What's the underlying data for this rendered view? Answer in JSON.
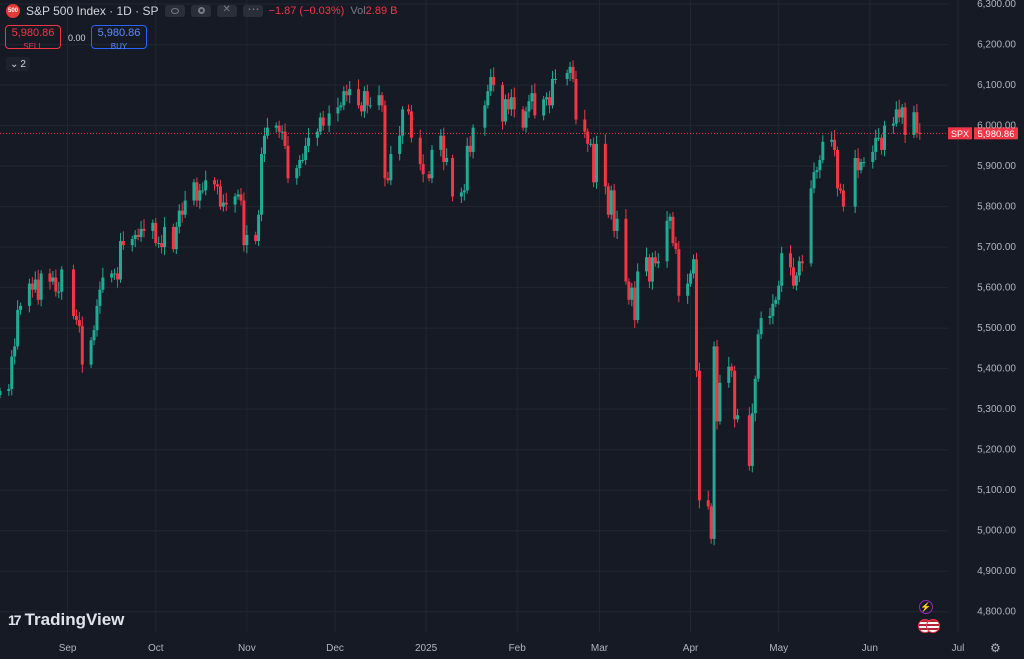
{
  "header": {
    "logo_text": "500",
    "title": "S&P 500 Index · 1D · SP",
    "change": "−1.87 (−0.03%)",
    "vol_label": "Vol",
    "vol_value": "2.89 B"
  },
  "trade": {
    "sell_price": "5,980.86",
    "sell_label": "SELL",
    "spread": "0.00",
    "buy_price": "5,980.86",
    "buy_label": "BUY"
  },
  "collapse_count": "2",
  "branding": "TradingView",
  "icons": [
    "eye-icon",
    "gear-icon",
    "close-icon",
    "more-icon",
    "chevron-down-icon",
    "lightning-icon",
    "us-flag-icon",
    "settings-icon"
  ],
  "colors": {
    "up": "#22ab94",
    "down": "#f23645",
    "background": "#161a25",
    "grid": "#232632",
    "axis_text": "#b2b5be"
  },
  "chart_data": {
    "type": "candlestick",
    "symbol": "SPX",
    "last_price": "5,980.86",
    "ylim": [
      4750,
      6310
    ],
    "y_ticks": [
      4800,
      4900,
      5000,
      5100,
      5200,
      5300,
      5400,
      5500,
      5600,
      5700,
      5800,
      5900,
      6000,
      6100,
      6200,
      6300
    ],
    "y_tick_labels": [
      "4,800.00",
      "4,900.00",
      "5,000.00",
      "5,100.00",
      "5,200.00",
      "5,300.00",
      "5,400.00",
      "5,500.00",
      "5,600.00",
      "5,700.00",
      "5,800.00",
      "5,900.00",
      "6,000.00",
      "6,100.00",
      "6,200.00",
      "6,300.00"
    ],
    "x_tick_labels": [
      "Sep",
      "Oct",
      "Nov",
      "Dec",
      "2025",
      "Feb",
      "Mar",
      "Apr",
      "May",
      "Jun",
      "Jul"
    ],
    "x_tick_dates": [
      "2024-09-01",
      "2024-10-01",
      "2024-11-01",
      "2024-12-01",
      "2025-01-01",
      "2025-02-01",
      "2025-03-01",
      "2025-04-01",
      "2025-05-01",
      "2025-06-01",
      "2025-07-01"
    ],
    "x_range": [
      "2024-08-09",
      "2025-07-01"
    ],
    "grid": true,
    "price_line": 5980.86,
    "series": [
      {
        "date": "2024-08-09",
        "close": 5345
      },
      {
        "date": "2024-08-12",
        "close": 5350
      },
      {
        "date": "2024-08-13",
        "close": 5430
      },
      {
        "date": "2024-08-14",
        "close": 5455
      },
      {
        "date": "2024-08-15",
        "close": 5545
      },
      {
        "date": "2024-08-16",
        "close": 5555
      },
      {
        "date": "2024-08-19",
        "close": 5610
      },
      {
        "date": "2024-08-20",
        "close": 5595
      },
      {
        "date": "2024-08-21",
        "close": 5620
      },
      {
        "date": "2024-08-22",
        "close": 5570
      },
      {
        "date": "2024-08-23",
        "close": 5635
      },
      {
        "date": "2024-08-26",
        "close": 5615
      },
      {
        "date": "2024-08-27",
        "close": 5625
      },
      {
        "date": "2024-08-28",
        "close": 5590
      },
      {
        "date": "2024-08-29",
        "close": 5590
      },
      {
        "date": "2024-08-30",
        "close": 5645
      },
      {
        "date": "2024-09-03",
        "close": 5530
      },
      {
        "date": "2024-09-04",
        "close": 5520
      },
      {
        "date": "2024-09-05",
        "close": 5505
      },
      {
        "date": "2024-09-06",
        "close": 5410
      },
      {
        "date": "2024-09-09",
        "close": 5470
      },
      {
        "date": "2024-09-10",
        "close": 5495
      },
      {
        "date": "2024-09-11",
        "close": 5555
      },
      {
        "date": "2024-09-12",
        "close": 5595
      },
      {
        "date": "2024-09-13",
        "close": 5625
      },
      {
        "date": "2024-09-16",
        "close": 5635
      },
      {
        "date": "2024-09-17",
        "close": 5635
      },
      {
        "date": "2024-09-18",
        "close": 5620
      },
      {
        "date": "2024-09-19",
        "close": 5715
      },
      {
        "date": "2024-09-20",
        "close": 5705
      },
      {
        "date": "2024-09-23",
        "close": 5720
      },
      {
        "date": "2024-09-24",
        "close": 5730
      },
      {
        "date": "2024-09-25",
        "close": 5725
      },
      {
        "date": "2024-09-26",
        "close": 5745
      },
      {
        "date": "2024-09-27",
        "close": 5740
      },
      {
        "date": "2024-09-30",
        "close": 5760
      },
      {
        "date": "2024-10-01",
        "close": 5710
      },
      {
        "date": "2024-10-02",
        "close": 5710
      },
      {
        "date": "2024-10-03",
        "close": 5700
      },
      {
        "date": "2024-10-04",
        "close": 5750
      },
      {
        "date": "2024-10-07",
        "close": 5695
      },
      {
        "date": "2024-10-08",
        "close": 5750
      },
      {
        "date": "2024-10-09",
        "close": 5790
      },
      {
        "date": "2024-10-10",
        "close": 5780
      },
      {
        "date": "2024-10-11",
        "close": 5815
      },
      {
        "date": "2024-10-14",
        "close": 5860
      },
      {
        "date": "2024-10-15",
        "close": 5815
      },
      {
        "date": "2024-10-16",
        "close": 5840
      },
      {
        "date": "2024-10-17",
        "close": 5840
      },
      {
        "date": "2024-10-18",
        "close": 5865
      },
      {
        "date": "2024-10-21",
        "close": 5855
      },
      {
        "date": "2024-10-22",
        "close": 5850
      },
      {
        "date": "2024-10-23",
        "close": 5800
      },
      {
        "date": "2024-10-24",
        "close": 5810
      },
      {
        "date": "2024-10-25",
        "close": 5805
      },
      {
        "date": "2024-10-28",
        "close": 5825
      },
      {
        "date": "2024-10-29",
        "close": 5830
      },
      {
        "date": "2024-10-30",
        "close": 5815
      },
      {
        "date": "2024-10-31",
        "close": 5705
      },
      {
        "date": "2024-11-01",
        "close": 5730
      },
      {
        "date": "2024-11-04",
        "close": 5715
      },
      {
        "date": "2024-11-05",
        "close": 5780
      },
      {
        "date": "2024-11-06",
        "close": 5930
      },
      {
        "date": "2024-11-07",
        "close": 5975
      },
      {
        "date": "2024-11-08",
        "close": 5995
      },
      {
        "date": "2024-11-11",
        "close": 6000
      },
      {
        "date": "2024-11-12",
        "close": 5985
      },
      {
        "date": "2024-11-13",
        "close": 5985
      },
      {
        "date": "2024-11-14",
        "close": 5950
      },
      {
        "date": "2024-11-15",
        "close": 5870
      },
      {
        "date": "2024-11-18",
        "close": 5895
      },
      {
        "date": "2024-11-19",
        "close": 5915
      },
      {
        "date": "2024-11-20",
        "close": 5915
      },
      {
        "date": "2024-11-21",
        "close": 5950
      },
      {
        "date": "2024-11-22",
        "close": 5970
      },
      {
        "date": "2024-11-25",
        "close": 5985
      },
      {
        "date": "2024-11-26",
        "close": 6020
      },
      {
        "date": "2024-11-27",
        "close": 6000
      },
      {
        "date": "2024-11-29",
        "close": 6030
      },
      {
        "date": "2024-12-02",
        "close": 6045
      },
      {
        "date": "2024-12-03",
        "close": 6050
      },
      {
        "date": "2024-12-04",
        "close": 6085
      },
      {
        "date": "2024-12-05",
        "close": 6075
      },
      {
        "date": "2024-12-06",
        "close": 6090
      },
      {
        "date": "2024-12-09",
        "close": 6050
      },
      {
        "date": "2024-12-10",
        "close": 6035
      },
      {
        "date": "2024-12-11",
        "close": 6085
      },
      {
        "date": "2024-12-12",
        "close": 6050
      },
      {
        "date": "2024-12-13",
        "close": 6050
      },
      {
        "date": "2024-12-16",
        "close": 6075
      },
      {
        "date": "2024-12-17",
        "close": 6050
      },
      {
        "date": "2024-12-18",
        "close": 5870
      },
      {
        "date": "2024-12-19",
        "close": 5865
      },
      {
        "date": "2024-12-20",
        "close": 5930
      },
      {
        "date": "2024-12-23",
        "close": 5975
      },
      {
        "date": "2024-12-24",
        "close": 6040
      },
      {
        "date": "2024-12-26",
        "close": 6035
      },
      {
        "date": "2024-12-27",
        "close": 5970
      },
      {
        "date": "2024-12-30",
        "close": 5905
      },
      {
        "date": "2024-12-31",
        "close": 5880
      },
      {
        "date": "2025-01-02",
        "close": 5870
      },
      {
        "date": "2025-01-03",
        "close": 5940
      },
      {
        "date": "2025-01-06",
        "close": 5975
      },
      {
        "date": "2025-01-07",
        "close": 5910
      },
      {
        "date": "2025-01-08",
        "close": 5920
      },
      {
        "date": "2025-01-10",
        "close": 5825
      },
      {
        "date": "2025-01-13",
        "close": 5835
      },
      {
        "date": "2025-01-14",
        "close": 5840
      },
      {
        "date": "2025-01-15",
        "close": 5950
      },
      {
        "date": "2025-01-16",
        "close": 5935
      },
      {
        "date": "2025-01-17",
        "close": 5995
      },
      {
        "date": "2025-01-21",
        "close": 6050
      },
      {
        "date": "2025-01-22",
        "close": 6085
      },
      {
        "date": "2025-01-23",
        "close": 6120
      },
      {
        "date": "2025-01-24",
        "close": 6100
      },
      {
        "date": "2025-01-27",
        "close": 6010
      },
      {
        "date": "2025-01-28",
        "close": 6065
      },
      {
        "date": "2025-01-29",
        "close": 6040
      },
      {
        "date": "2025-01-30",
        "close": 6070
      },
      {
        "date": "2025-01-31",
        "close": 6040
      },
      {
        "date": "2025-02-03",
        "close": 5995
      },
      {
        "date": "2025-02-04",
        "close": 6035
      },
      {
        "date": "2025-02-05",
        "close": 6060
      },
      {
        "date": "2025-02-06",
        "close": 6080
      },
      {
        "date": "2025-02-07",
        "close": 6025
      },
      {
        "date": "2025-02-10",
        "close": 6065
      },
      {
        "date": "2025-02-11",
        "close": 6070
      },
      {
        "date": "2025-02-12",
        "close": 6050
      },
      {
        "date": "2025-02-13",
        "close": 6115
      },
      {
        "date": "2025-02-14",
        "close": 6115
      },
      {
        "date": "2025-02-18",
        "close": 6130
      },
      {
        "date": "2025-02-19",
        "close": 6145
      },
      {
        "date": "2025-02-20",
        "close": 6115
      },
      {
        "date": "2025-02-21",
        "close": 6015
      },
      {
        "date": "2025-02-24",
        "close": 5985
      },
      {
        "date": "2025-02-25",
        "close": 5955
      },
      {
        "date": "2025-02-26",
        "close": 5955
      },
      {
        "date": "2025-02-27",
        "close": 5860
      },
      {
        "date": "2025-02-28",
        "close": 5955
      },
      {
        "date": "2025-03-03",
        "close": 5850
      },
      {
        "date": "2025-03-04",
        "close": 5780
      },
      {
        "date": "2025-03-05",
        "close": 5840
      },
      {
        "date": "2025-03-06",
        "close": 5740
      },
      {
        "date": "2025-03-07",
        "close": 5770
      },
      {
        "date": "2025-03-10",
        "close": 5615
      },
      {
        "date": "2025-03-11",
        "close": 5570
      },
      {
        "date": "2025-03-12",
        "close": 5600
      },
      {
        "date": "2025-03-13",
        "close": 5520
      },
      {
        "date": "2025-03-14",
        "close": 5640
      },
      {
        "date": "2025-03-17",
        "close": 5675
      },
      {
        "date": "2025-03-18",
        "close": 5615
      },
      {
        "date": "2025-03-19",
        "close": 5675
      },
      {
        "date": "2025-03-20",
        "close": 5660
      },
      {
        "date": "2025-03-21",
        "close": 5665
      },
      {
        "date": "2025-03-24",
        "close": 5765
      },
      {
        "date": "2025-03-25",
        "close": 5775
      },
      {
        "date": "2025-03-26",
        "close": 5710
      },
      {
        "date": "2025-03-27",
        "close": 5695
      },
      {
        "date": "2025-03-28",
        "close": 5580
      },
      {
        "date": "2025-03-31",
        "close": 5610
      },
      {
        "date": "2025-04-01",
        "close": 5635
      },
      {
        "date": "2025-04-02",
        "close": 5670
      },
      {
        "date": "2025-04-03",
        "close": 5395
      },
      {
        "date": "2025-04-04",
        "close": 5075
      },
      {
        "date": "2025-04-07",
        "close": 5060
      },
      {
        "date": "2025-04-08",
        "close": 4980
      },
      {
        "date": "2025-04-09",
        "close": 5455
      },
      {
        "date": "2025-04-10",
        "close": 5270
      },
      {
        "date": "2025-04-11",
        "close": 5365
      },
      {
        "date": "2025-04-14",
        "close": 5405
      },
      {
        "date": "2025-04-15",
        "close": 5395
      },
      {
        "date": "2025-04-16",
        "close": 5275
      },
      {
        "date": "2025-04-17",
        "close": 5285
      },
      {
        "date": "2025-04-21",
        "close": 5160
      },
      {
        "date": "2025-04-22",
        "close": 5290
      },
      {
        "date": "2025-04-23",
        "close": 5375
      },
      {
        "date": "2025-04-24",
        "close": 5485
      },
      {
        "date": "2025-04-25",
        "close": 5525
      },
      {
        "date": "2025-04-28",
        "close": 5530
      },
      {
        "date": "2025-04-29",
        "close": 5560
      },
      {
        "date": "2025-04-30",
        "close": 5570
      },
      {
        "date": "2025-05-01",
        "close": 5605
      },
      {
        "date": "2025-05-02",
        "close": 5685
      },
      {
        "date": "2025-05-05",
        "close": 5650
      },
      {
        "date": "2025-05-06",
        "close": 5605
      },
      {
        "date": "2025-05-07",
        "close": 5630
      },
      {
        "date": "2025-05-08",
        "close": 5665
      },
      {
        "date": "2025-05-09",
        "close": 5660
      },
      {
        "date": "2025-05-12",
        "close": 5845
      },
      {
        "date": "2025-05-13",
        "close": 5885
      },
      {
        "date": "2025-05-14",
        "close": 5890
      },
      {
        "date": "2025-05-15",
        "close": 5915
      },
      {
        "date": "2025-05-16",
        "close": 5960
      },
      {
        "date": "2025-05-19",
        "close": 5965
      },
      {
        "date": "2025-05-20",
        "close": 5940
      },
      {
        "date": "2025-05-21",
        "close": 5845
      },
      {
        "date": "2025-05-22",
        "close": 5840
      },
      {
        "date": "2025-05-23",
        "close": 5800
      },
      {
        "date": "2025-05-27",
        "close": 5920
      },
      {
        "date": "2025-05-28",
        "close": 5890
      },
      {
        "date": "2025-05-29",
        "close": 5910
      },
      {
        "date": "2025-05-30",
        "close": 5910
      },
      {
        "date": "2025-06-02",
        "close": 5935
      },
      {
        "date": "2025-06-03",
        "close": 5970
      },
      {
        "date": "2025-06-04",
        "close": 5970
      },
      {
        "date": "2025-06-05",
        "close": 5940
      },
      {
        "date": "2025-06-06",
        "close": 6000
      },
      {
        "date": "2025-06-09",
        "close": 6005
      },
      {
        "date": "2025-06-10",
        "close": 6040
      },
      {
        "date": "2025-06-11",
        "close": 6020
      },
      {
        "date": "2025-06-12",
        "close": 6045
      },
      {
        "date": "2025-06-13",
        "close": 5977
      },
      {
        "date": "2025-06-16",
        "close": 6033
      },
      {
        "date": "2025-06-17",
        "close": 5982
      },
      {
        "date": "2025-06-18",
        "close": 5980.86
      }
    ]
  }
}
